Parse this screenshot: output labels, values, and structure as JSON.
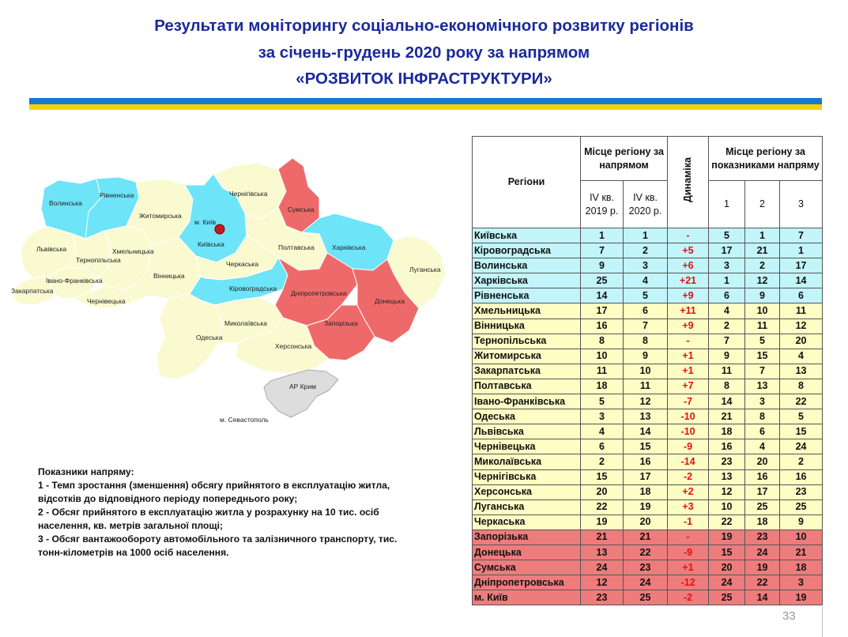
{
  "title": {
    "line1": "Результати моніторингу соціально-економічного розвитку регіонів",
    "line2": "за січень-грудень 2020 року за напрямом",
    "line3": "«РОЗВИТОК ІНФРАСТРУКТУРИ»"
  },
  "colors": {
    "title": "#1a2a9c",
    "flag_blue": "#1b78cc",
    "flag_yellow": "#f8d200",
    "best": "#6de4f8",
    "middle": "#fafad0",
    "worst": "#ee6a6a",
    "crimea": "#dddddd",
    "dynamics": "#e41010"
  },
  "map": {
    "labels": {
      "volynska": "Волинська",
      "rivnenska": "Рівненська",
      "zhytomyrska": "Житомирська",
      "chernihivska": "Чернігівська",
      "sumska": "Сумська",
      "kyiv": "м. Київ",
      "kyivska": "Київська",
      "lvivska": "Львівська",
      "khmelnytska": "Хмельницька",
      "ternopilska": "Тернопільська",
      "vinnytska": "Вінницька",
      "poltavska": "Полтавська",
      "kharkivska": "Харківська",
      "luhanska": "Луганська",
      "cherkaska": "Черкаська",
      "ivano": "Івано-Франківська",
      "zakarpatska": "Закарпатська",
      "chernivetska": "Чернівецька",
      "kirovohradska": "Кіровоградська",
      "dnipro": "Дніпропетровська",
      "donetska": "Донецька",
      "mykolaivska": "Миколаївська",
      "zaporizka": "Запорізька",
      "odeska": "Одеська",
      "khersonska": "Херсонська",
      "crimea": "АР Крим",
      "sevastopol": "м. Севастополь"
    }
  },
  "notes": {
    "heading": "Показники напряму:",
    "line1": "1 - Темп зростання (зменшення) обсягу прийнятого в експлуатацію житла,",
    "line2": "відсотків до відповідного періоду попереднього року;",
    "line3": "2 - Обсяг прийнятого в експлуатацію житла у розрахунку на 10 тис. осіб",
    "line4": "населення, кв. метрів загальної площі;",
    "line5": "3 - Обсяг вантажообороту автомобільного та залізничного транспорту, тис.",
    "line6": "тонн-кілометрів на 1000 осіб населення."
  },
  "table": {
    "headers": {
      "regions": "Регіони",
      "place_direction": "Місце регіону за напрямом",
      "q4_2019": "IV кв. 2019 р.",
      "q4_2020": "IV кв. 2020 р.",
      "dynamics": "Динаміка",
      "place_indicators": "Місце регіону за показниками напряму",
      "i1": "1",
      "i2": "2",
      "i3": "3"
    },
    "rows": [
      {
        "region": "Київська",
        "q2019": "1",
        "q2020": "1",
        "dyn": "-",
        "i1": "5",
        "i2": "1",
        "i3": "7",
        "group": "cyan"
      },
      {
        "region": "Кіровоградська",
        "q2019": "7",
        "q2020": "2",
        "dyn": "+5",
        "i1": "17",
        "i2": "21",
        "i3": "1",
        "group": "cyan"
      },
      {
        "region": "Волинська",
        "q2019": "9",
        "q2020": "3",
        "dyn": "+6",
        "i1": "3",
        "i2": "2",
        "i3": "17",
        "group": "cyan"
      },
      {
        "region": "Харківська",
        "q2019": "25",
        "q2020": "4",
        "dyn": "+21",
        "i1": "1",
        "i2": "12",
        "i3": "14",
        "group": "cyan"
      },
      {
        "region": "Рівненська",
        "q2019": "14",
        "q2020": "5",
        "dyn": "+9",
        "i1": "6",
        "i2": "9",
        "i3": "6",
        "group": "cyan"
      },
      {
        "region": "Хмельницька",
        "q2019": "17",
        "q2020": "6",
        "dyn": "+11",
        "i1": "4",
        "i2": "10",
        "i3": "11",
        "group": "yellow"
      },
      {
        "region": "Вінницька",
        "q2019": "16",
        "q2020": "7",
        "dyn": "+9",
        "i1": "2",
        "i2": "11",
        "i3": "12",
        "group": "yellow"
      },
      {
        "region": "Тернопільська",
        "q2019": "8",
        "q2020": "8",
        "dyn": "-",
        "i1": "7",
        "i2": "5",
        "i3": "20",
        "group": "yellow"
      },
      {
        "region": "Житомирська",
        "q2019": "10",
        "q2020": "9",
        "dyn": "+1",
        "i1": "9",
        "i2": "15",
        "i3": "4",
        "group": "yellow"
      },
      {
        "region": "Закарпатська",
        "q2019": "11",
        "q2020": "10",
        "dyn": "+1",
        "i1": "11",
        "i2": "7",
        "i3": "13",
        "group": "yellow"
      },
      {
        "region": "Полтавська",
        "q2019": "18",
        "q2020": "11",
        "dyn": "+7",
        "i1": "8",
        "i2": "13",
        "i3": "8",
        "group": "yellow"
      },
      {
        "region": "Івано-Франківська",
        "q2019": "5",
        "q2020": "12",
        "dyn": "-7",
        "i1": "14",
        "i2": "3",
        "i3": "22",
        "group": "yellow"
      },
      {
        "region": "Одеська",
        "q2019": "3",
        "q2020": "13",
        "dyn": "-10",
        "i1": "21",
        "i2": "8",
        "i3": "5",
        "group": "yellow"
      },
      {
        "region": "Львівська",
        "q2019": "4",
        "q2020": "14",
        "dyn": "-10",
        "i1": "18",
        "i2": "6",
        "i3": "15",
        "group": "yellow"
      },
      {
        "region": "Чернівецька",
        "q2019": "6",
        "q2020": "15",
        "dyn": "-9",
        "i1": "16",
        "i2": "4",
        "i3": "24",
        "group": "yellow"
      },
      {
        "region": "Миколаївська",
        "q2019": "2",
        "q2020": "16",
        "dyn": "-14",
        "i1": "23",
        "i2": "20",
        "i3": "2",
        "group": "yellow"
      },
      {
        "region": "Чернігівська",
        "q2019": "15",
        "q2020": "17",
        "dyn": "-2",
        "i1": "13",
        "i2": "16",
        "i3": "16",
        "group": "yellow"
      },
      {
        "region": "Херсонська",
        "q2019": "20",
        "q2020": "18",
        "dyn": "+2",
        "i1": "12",
        "i2": "17",
        "i3": "23",
        "group": "yellow"
      },
      {
        "region": "Луганська",
        "q2019": "22",
        "q2020": "19",
        "dyn": "+3",
        "i1": "10",
        "i2": "25",
        "i3": "25",
        "group": "yellow"
      },
      {
        "region": "Черкаська",
        "q2019": "19",
        "q2020": "20",
        "dyn": "-1",
        "i1": "22",
        "i2": "18",
        "i3": "9",
        "group": "yellow"
      },
      {
        "region": "Запорізька",
        "q2019": "21",
        "q2020": "21",
        "dyn": "-",
        "i1": "19",
        "i2": "23",
        "i3": "10",
        "group": "red"
      },
      {
        "region": "Донецька",
        "q2019": "13",
        "q2020": "22",
        "dyn": "-9",
        "i1": "15",
        "i2": "24",
        "i3": "21",
        "group": "red"
      },
      {
        "region": "Сумська",
        "q2019": "24",
        "q2020": "23",
        "dyn": "+1",
        "i1": "20",
        "i2": "19",
        "i3": "18",
        "group": "red"
      },
      {
        "region": "Дніпропетровська",
        "q2019": "12",
        "q2020": "24",
        "dyn": "-12",
        "i1": "24",
        "i2": "22",
        "i3": "3",
        "group": "red"
      },
      {
        "region": "м. Київ",
        "q2019": "23",
        "q2020": "25",
        "dyn": "-2",
        "i1": "25",
        "i2": "14",
        "i3": "19",
        "group": "red"
      }
    ]
  },
  "page_number": "33"
}
